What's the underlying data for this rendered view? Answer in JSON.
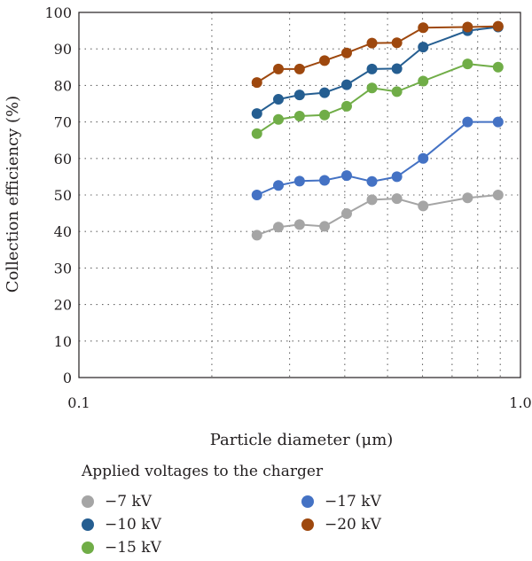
{
  "chart_data": {
    "type": "line",
    "xscale": "log",
    "xlim": [
      0.1,
      1.0
    ],
    "ylim": [
      0,
      100
    ],
    "xticks": [
      "0.1",
      "1.0"
    ],
    "yticks": [
      "0",
      "10",
      "20",
      "30",
      "40",
      "50",
      "60",
      "70",
      "80",
      "90",
      "100"
    ],
    "xlabel": "Particle diameter (μm)",
    "ylabel": "Collection efficiency (%)",
    "grid": true,
    "legend_title": "Applied voltages to the charger",
    "legend_position": "bottom",
    "x": [
      0.253,
      0.283,
      0.316,
      0.36,
      0.404,
      0.461,
      0.525,
      0.602,
      0.759,
      0.89
    ],
    "series": [
      {
        "name": "−7 kV",
        "color": "#a5a5a5",
        "values": [
          39,
          41.2,
          41.9,
          41.4,
          44.9,
          48.7,
          49,
          47,
          49.2,
          50
        ]
      },
      {
        "name": "−10 kV",
        "color": "#255e91",
        "values": [
          72.3,
          76.2,
          77.4,
          78,
          80.2,
          84.5,
          84.6,
          90.5,
          95,
          96
        ]
      },
      {
        "name": "−15 kV",
        "color": "#70ad47",
        "values": [
          66.8,
          70.7,
          71.6,
          71.9,
          74.3,
          79.3,
          78.3,
          81.2,
          85.9,
          85
        ]
      },
      {
        "name": "−17 kV",
        "color": "#4472c4",
        "values": [
          50,
          52.6,
          53.8,
          54,
          55.3,
          53.7,
          55,
          60,
          70,
          70
        ]
      },
      {
        "name": "−20 kV",
        "color": "#9e480e",
        "values": [
          80.8,
          84.5,
          84.5,
          86.8,
          88.9,
          91.6,
          91.7,
          95.8,
          96,
          96.2
        ]
      }
    ]
  }
}
